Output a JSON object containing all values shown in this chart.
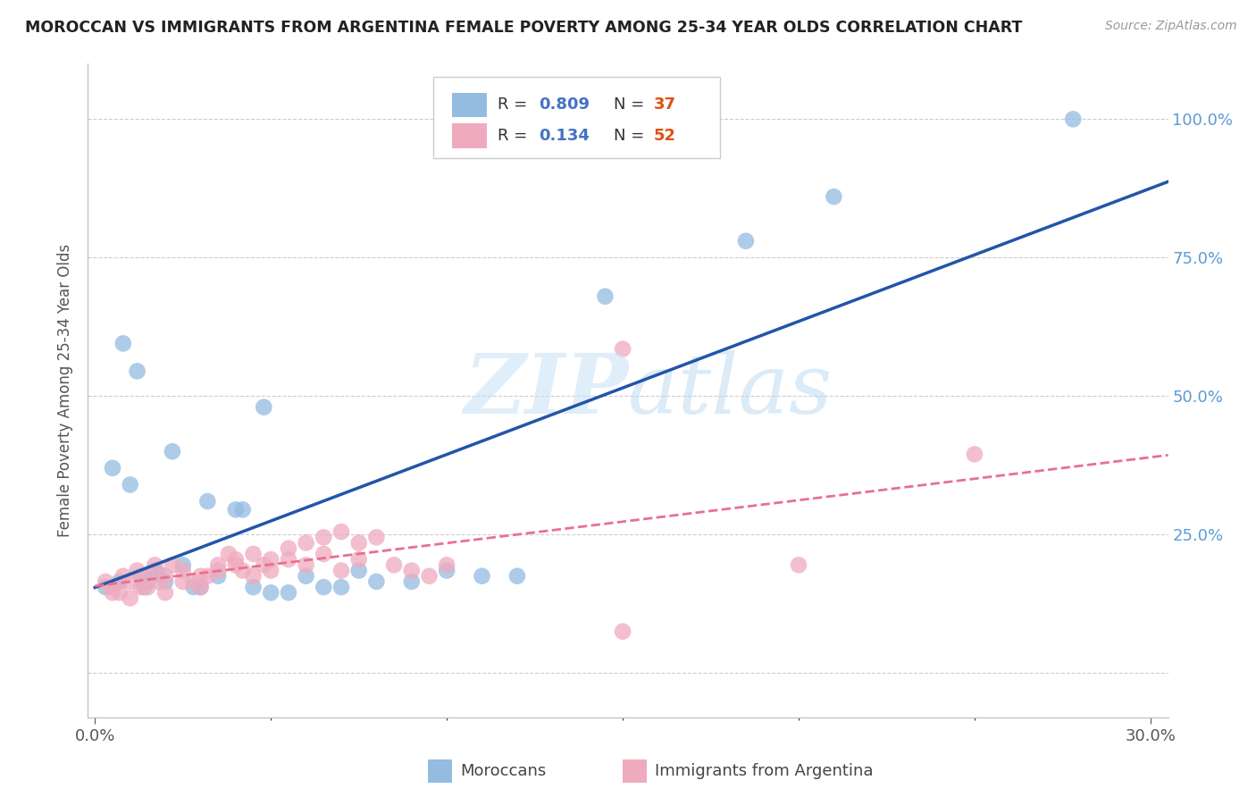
{
  "title": "MOROCCAN VS IMMIGRANTS FROM ARGENTINA FEMALE POVERTY AMONG 25-34 YEAR OLDS CORRELATION CHART",
  "source": "Source: ZipAtlas.com",
  "ylabel": "Female Poverty Among 25-34 Year Olds",
  "xlim": [
    -0.002,
    0.305
  ],
  "ylim": [
    -0.08,
    1.1
  ],
  "ytick_vals": [
    0.0,
    0.25,
    0.5,
    0.75,
    1.0
  ],
  "ytick_labels": [
    "",
    "25.0%",
    "50.0%",
    "75.0%",
    "100.0%"
  ],
  "xtick_vals": [
    0.0,
    0.3
  ],
  "xtick_labels": [
    "0.0%",
    "30.0%"
  ],
  "moroccan_color": "#93bce0",
  "argentina_color": "#f0aabe",
  "moroccan_line_color": "#2255aa",
  "argentina_line_color": "#e87090",
  "ytick_color": "#5b9bd5",
  "xtick_color": "#555555",
  "background_color": "#ffffff",
  "grid_color": "#cccccc",
  "moroccan_x": [
    0.008,
    0.012,
    0.018,
    0.022,
    0.005,
    0.01,
    0.014,
    0.017,
    0.02,
    0.025,
    0.03,
    0.035,
    0.04,
    0.045,
    0.05,
    0.06,
    0.07,
    0.08,
    0.1,
    0.12,
    0.015,
    0.028,
    0.042,
    0.055,
    0.065,
    0.075,
    0.09,
    0.11,
    0.003,
    0.007,
    0.013,
    0.032,
    0.048,
    0.145,
    0.185,
    0.21,
    0.278
  ],
  "moroccan_y": [
    0.595,
    0.545,
    0.18,
    0.4,
    0.37,
    0.34,
    0.155,
    0.185,
    0.165,
    0.195,
    0.155,
    0.175,
    0.295,
    0.155,
    0.145,
    0.175,
    0.155,
    0.165,
    0.185,
    0.175,
    0.165,
    0.155,
    0.295,
    0.145,
    0.155,
    0.185,
    0.165,
    0.175,
    0.155,
    0.165,
    0.175,
    0.31,
    0.48,
    0.68,
    0.78,
    0.86,
    1.0
  ],
  "argentina_x": [
    0.003,
    0.005,
    0.007,
    0.008,
    0.01,
    0.012,
    0.013,
    0.015,
    0.017,
    0.018,
    0.02,
    0.022,
    0.025,
    0.028,
    0.03,
    0.032,
    0.035,
    0.038,
    0.04,
    0.042,
    0.045,
    0.048,
    0.05,
    0.055,
    0.06,
    0.065,
    0.07,
    0.075,
    0.005,
    0.01,
    0.015,
    0.02,
    0.025,
    0.03,
    0.035,
    0.04,
    0.045,
    0.05,
    0.055,
    0.06,
    0.065,
    0.07,
    0.075,
    0.08,
    0.085,
    0.09,
    0.095,
    0.1,
    0.15,
    0.2,
    0.25,
    0.15
  ],
  "argentina_y": [
    0.165,
    0.155,
    0.145,
    0.175,
    0.165,
    0.185,
    0.155,
    0.175,
    0.195,
    0.165,
    0.175,
    0.195,
    0.185,
    0.165,
    0.155,
    0.175,
    0.195,
    0.215,
    0.205,
    0.185,
    0.175,
    0.195,
    0.185,
    0.205,
    0.195,
    0.215,
    0.185,
    0.205,
    0.145,
    0.135,
    0.155,
    0.145,
    0.165,
    0.175,
    0.185,
    0.195,
    0.215,
    0.205,
    0.225,
    0.235,
    0.245,
    0.255,
    0.235,
    0.245,
    0.195,
    0.185,
    0.175,
    0.195,
    0.585,
    0.195,
    0.395,
    0.075
  ]
}
